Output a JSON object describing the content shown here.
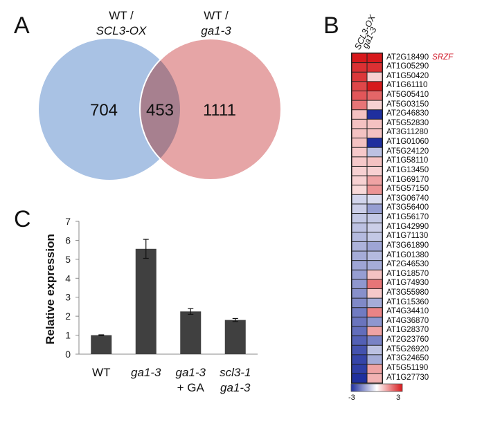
{
  "panels": {
    "a": "A",
    "b": "B",
    "c": "C"
  },
  "venn": {
    "left": {
      "title_line1": "WT /",
      "title_line2": "SCL3-OX",
      "only_count": "704",
      "color": "#a9c2e4"
    },
    "right": {
      "title_line1": "WT /",
      "title_line2": "ga1-3",
      "only_count": "1111",
      "color": "#e6a5a6"
    },
    "overlap_count": "453",
    "overlap_color": "#a7808f"
  },
  "chart_data": [
    {
      "type": "bar",
      "title": "",
      "ylabel": "Relative expression",
      "xlabel": "",
      "ylim": [
        0,
        7
      ],
      "yticks": [
        "0",
        "1",
        "2",
        "3",
        "4",
        "5",
        "6",
        "7"
      ],
      "categories": [
        {
          "line1": "WT",
          "line2": "",
          "italic": false
        },
        {
          "line1": "ga1-3",
          "line2": "",
          "italic": true
        },
        {
          "line1": "ga1-3",
          "line2": "+ GA",
          "italic": true
        },
        {
          "line1": "scl3-1",
          "line2": "ga1-3",
          "italic": true
        }
      ],
      "values": [
        1.0,
        5.55,
        2.25,
        1.8
      ],
      "errors": [
        0.02,
        0.5,
        0.15,
        0.08
      ],
      "bar_color": "#404040"
    },
    {
      "type": "heatmap",
      "columns": [
        "SCL3-OX",
        "ga1-3"
      ],
      "rows": [
        {
          "gene": "AT2G18490",
          "note": "SRZF",
          "values": [
            3.0,
            3.0
          ]
        },
        {
          "gene": "AT1G05290",
          "note": "",
          "values": [
            2.7,
            2.7
          ]
        },
        {
          "gene": "AT1G50420",
          "note": "",
          "values": [
            2.6,
            0.6
          ]
        },
        {
          "gene": "AT1G61110",
          "note": "",
          "values": [
            2.4,
            3.0
          ]
        },
        {
          "gene": "AT5G05410",
          "note": "",
          "values": [
            2.2,
            2.0
          ]
        },
        {
          "gene": "AT5G03150",
          "note": "",
          "values": [
            1.8,
            0.6
          ]
        },
        {
          "gene": "AT2G46830",
          "note": "",
          "values": [
            0.8,
            -3.0
          ]
        },
        {
          "gene": "AT5G52830",
          "note": "",
          "values": [
            0.8,
            0.8
          ]
        },
        {
          "gene": "AT3G11280",
          "note": "",
          "values": [
            0.8,
            0.8
          ]
        },
        {
          "gene": "AT1G01060",
          "note": "",
          "values": [
            0.8,
            -3.0
          ]
        },
        {
          "gene": "AT5G24120",
          "note": "",
          "values": [
            0.7,
            -0.9
          ]
        },
        {
          "gene": "AT1G58110",
          "note": "",
          "values": [
            0.7,
            0.8
          ]
        },
        {
          "gene": "AT1G13450",
          "note": "",
          "values": [
            0.6,
            0.6
          ]
        },
        {
          "gene": "AT1G69170",
          "note": "",
          "values": [
            0.6,
            1.2
          ]
        },
        {
          "gene": "AT5G57150",
          "note": "",
          "values": [
            0.5,
            1.4
          ]
        },
        {
          "gene": "AT3G06740",
          "note": "",
          "values": [
            -0.6,
            -0.5
          ]
        },
        {
          "gene": "AT3G56400",
          "note": "",
          "values": [
            -0.7,
            -1.4
          ]
        },
        {
          "gene": "AT1G56170",
          "note": "",
          "values": [
            -0.8,
            -0.8
          ]
        },
        {
          "gene": "AT1G42990",
          "note": "",
          "values": [
            -0.9,
            -0.7
          ]
        },
        {
          "gene": "AT1G71130",
          "note": "",
          "values": [
            -1.0,
            -0.8
          ]
        },
        {
          "gene": "AT3G61890",
          "note": "",
          "values": [
            -1.1,
            -1.3
          ]
        },
        {
          "gene": "AT1G01380",
          "note": "",
          "values": [
            -1.2,
            -1.0
          ]
        },
        {
          "gene": "AT2G46530",
          "note": "",
          "values": [
            -1.3,
            -1.2
          ]
        },
        {
          "gene": "AT1G18570",
          "note": "",
          "values": [
            -1.4,
            0.8
          ]
        },
        {
          "gene": "AT1G74930",
          "note": "",
          "values": [
            -1.5,
            1.8
          ]
        },
        {
          "gene": "AT3G55980",
          "note": "",
          "values": [
            -1.6,
            0.7
          ]
        },
        {
          "gene": "AT1G15360",
          "note": "",
          "values": [
            -1.7,
            -1.2
          ]
        },
        {
          "gene": "AT4G34410",
          "note": "",
          "values": [
            -1.9,
            1.6
          ]
        },
        {
          "gene": "AT4G36870",
          "note": "",
          "values": [
            -2.0,
            -1.5
          ]
        },
        {
          "gene": "AT1G28370",
          "note": "",
          "values": [
            -2.1,
            1.2
          ]
        },
        {
          "gene": "AT2G23760",
          "note": "",
          "values": [
            -2.3,
            -1.8
          ]
        },
        {
          "gene": "AT5G26920",
          "note": "",
          "values": [
            -2.5,
            -0.9
          ]
        },
        {
          "gene": "AT3G24650",
          "note": "",
          "values": [
            -2.7,
            -1.2
          ]
        },
        {
          "gene": "AT5G51190",
          "note": "",
          "values": [
            -2.8,
            1.2
          ]
        },
        {
          "gene": "AT1G27730",
          "note": "",
          "values": [
            -3.0,
            1.0
          ]
        }
      ],
      "scale": {
        "min": -3,
        "max": 3,
        "min_label": "-3",
        "max_label": "3",
        "low_color": "#1f2f9e",
        "mid_color": "#ffffff",
        "high_color": "#d7191c"
      }
    }
  ]
}
